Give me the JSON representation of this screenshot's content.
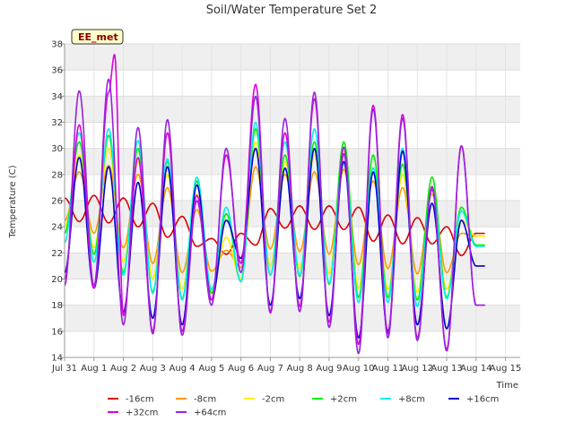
{
  "chart_data": {
    "type": "line",
    "title": "Soil/Water Temperature Set 2",
    "xlabel": "Time",
    "ylabel": "Temperature (C)",
    "badge": "EE_met",
    "ylim": [
      14,
      38
    ],
    "yticks": [
      14,
      16,
      18,
      20,
      22,
      24,
      26,
      28,
      30,
      32,
      34,
      36,
      38
    ],
    "xlim": [
      0,
      15.5
    ],
    "xticks": [
      {
        "pos": 0,
        "label": "Jul 31"
      },
      {
        "pos": 1,
        "label": "Aug 1"
      },
      {
        "pos": 2,
        "label": "Aug 2"
      },
      {
        "pos": 3,
        "label": "Aug 3"
      },
      {
        "pos": 4,
        "label": "Aug 4"
      },
      {
        "pos": 5,
        "label": "Aug 5"
      },
      {
        "pos": 6,
        "label": "Aug 6"
      },
      {
        "pos": 7,
        "label": "Aug 7"
      },
      {
        "pos": 8,
        "label": "Aug 8"
      },
      {
        "pos": 9,
        "label": "Aug 9"
      },
      {
        "pos": 10,
        "label": "Aug 10"
      },
      {
        "pos": 11,
        "label": "Aug 11"
      },
      {
        "pos": 12,
        "label": "Aug 12"
      },
      {
        "pos": 13,
        "label": "Aug 13"
      },
      {
        "pos": 14,
        "label": "Aug 14"
      },
      {
        "pos": 15,
        "label": "Aug 15"
      }
    ],
    "grid": true,
    "legend_position": "bottom",
    "series": [
      {
        "name": "-16cm",
        "color": "#dd0000",
        "x": [
          0.0,
          0.5,
          1.0,
          1.5,
          2.0,
          2.5,
          3.0,
          3.5,
          4.0,
          4.5,
          5.0,
          5.5,
          6.0,
          6.5,
          7.0,
          7.5,
          8.0,
          8.5,
          9.0,
          9.5,
          10.0,
          10.5,
          11.0,
          11.5,
          12.0,
          12.5,
          13.0,
          13.5,
          14.0,
          14.3
        ],
        "y": [
          26.2,
          24.4,
          26.4,
          24.3,
          26.2,
          24.0,
          25.8,
          23.2,
          24.8,
          22.5,
          23.1,
          21.9,
          23.5,
          22.6,
          25.4,
          23.9,
          25.6,
          23.8,
          25.6,
          23.8,
          25.5,
          22.9,
          24.9,
          22.7,
          24.7,
          22.7,
          24.0,
          21.8,
          23.5,
          23.5
        ]
      },
      {
        "name": "-8cm",
        "color": "#ff9900",
        "x": [
          0.0,
          0.5,
          1.0,
          1.5,
          2.0,
          2.5,
          3.0,
          3.5,
          4.0,
          4.5,
          5.0,
          5.5,
          6.0,
          6.5,
          7.0,
          7.5,
          8.0,
          8.5,
          9.0,
          9.5,
          10.0,
          10.5,
          11.0,
          11.5,
          12.0,
          12.5,
          13.0,
          13.5,
          14.0,
          14.3
        ],
        "y": [
          24.5,
          28.2,
          23.5,
          28.7,
          22.4,
          28.0,
          21.2,
          27.0,
          20.5,
          25.3,
          20.6,
          22.2,
          20.9,
          28.6,
          22.3,
          28.0,
          22.1,
          28.2,
          21.9,
          28.4,
          21.1,
          27.5,
          20.8,
          27.0,
          20.4,
          26.5,
          20.5,
          23.5,
          23.3,
          23.3
        ]
      },
      {
        "name": "-2cm",
        "color": "#ffee00",
        "x": [
          0.0,
          0.5,
          1.0,
          1.5,
          2.0,
          2.5,
          3.0,
          3.5,
          4.0,
          4.5,
          5.0,
          5.5,
          6.0,
          6.5,
          7.0,
          7.5,
          8.0,
          8.5,
          9.0,
          9.5,
          10.0,
          10.5,
          11.0,
          11.5,
          12.0,
          12.5,
          13.0,
          13.5,
          14.0,
          14.3
        ],
        "y": [
          24.0,
          29.5,
          22.4,
          30.0,
          21.3,
          29.0,
          20.0,
          28.0,
          19.2,
          26.5,
          19.3,
          23.2,
          20.0,
          30.5,
          21.0,
          29.0,
          20.8,
          29.5,
          20.4,
          29.8,
          19.3,
          28.5,
          19.2,
          28.0,
          19.0,
          27.0,
          19.2,
          24.5,
          23.3,
          23.3
        ]
      },
      {
        "name": "+2cm",
        "color": "#00ee00",
        "x": [
          0.0,
          0.5,
          1.0,
          1.5,
          2.0,
          2.5,
          3.0,
          3.5,
          4.0,
          4.5,
          5.0,
          5.5,
          6.0,
          6.5,
          7.0,
          7.5,
          8.0,
          8.5,
          9.0,
          9.5,
          10.0,
          10.5,
          11.0,
          11.5,
          12.0,
          12.5,
          13.0,
          13.5,
          14.0,
          14.3
        ],
        "y": [
          23.5,
          30.5,
          21.9,
          31.0,
          20.5,
          30.0,
          19.0,
          29.0,
          18.5,
          27.5,
          18.9,
          25.0,
          19.8,
          31.5,
          20.3,
          29.5,
          20.2,
          30.5,
          19.6,
          30.5,
          18.6,
          29.5,
          18.6,
          28.8,
          18.4,
          27.8,
          18.6,
          25.5,
          22.6,
          22.6
        ]
      },
      {
        "name": "+8cm",
        "color": "#00eeee",
        "x": [
          0.0,
          0.5,
          1.0,
          1.5,
          2.0,
          2.5,
          3.0,
          3.5,
          4.0,
          4.5,
          5.0,
          5.5,
          6.0,
          6.5,
          7.0,
          7.5,
          8.0,
          8.5,
          9.0,
          9.5,
          10.0,
          10.5,
          11.0,
          11.5,
          12.0,
          12.5,
          13.0,
          13.5,
          14.0,
          14.3
        ],
        "y": [
          22.8,
          31.2,
          21.3,
          31.5,
          20.3,
          30.6,
          18.9,
          29.2,
          18.4,
          27.8,
          19.2,
          25.5,
          19.8,
          32.0,
          20.3,
          30.5,
          20.3,
          31.5,
          19.7,
          29.5,
          18.2,
          28.5,
          18.2,
          30.0,
          17.9,
          26.8,
          18.5,
          25.2,
          22.5,
          22.5
        ]
      },
      {
        "name": "+16cm",
        "color": "#0000cc",
        "x": [
          0.0,
          0.5,
          1.0,
          1.5,
          2.0,
          2.5,
          3.0,
          3.5,
          4.0,
          4.5,
          5.0,
          5.5,
          6.0,
          6.5,
          7.0,
          7.5,
          8.0,
          8.5,
          9.0,
          9.5,
          10.0,
          10.5,
          11.0,
          11.5,
          12.0,
          12.5,
          13.0,
          13.5,
          14.0,
          14.3
        ],
        "y": [
          20.5,
          29.3,
          19.3,
          28.6,
          17.5,
          27.4,
          17.0,
          28.6,
          16.5,
          27.2,
          18.4,
          24.5,
          21.6,
          30.0,
          18.0,
          28.5,
          18.5,
          30.0,
          17.2,
          29.0,
          15.5,
          28.2,
          16.0,
          29.8,
          16.5,
          25.8,
          16.2,
          24.5,
          21.0,
          21.0
        ]
      },
      {
        "name": "+32cm",
        "color": "#dd00dd",
        "x": [
          0.0,
          0.5,
          1.0,
          1.5,
          1.7,
          2.0,
          2.5,
          3.0,
          3.5,
          4.0,
          4.5,
          5.0,
          5.5,
          6.0,
          6.5,
          7.0,
          7.5,
          8.0,
          8.5,
          9.0,
          9.5,
          10.0,
          10.5,
          11.0,
          11.5,
          12.0,
          12.5,
          13.0,
          13.5,
          14.0,
          14.3
        ],
        "y": [
          20.0,
          31.8,
          19.3,
          34.3,
          37.2,
          17.2,
          29.3,
          16.0,
          31.2,
          16.0,
          26.4,
          18.4,
          29.5,
          21.2,
          34.9,
          17.4,
          31.2,
          17.9,
          33.8,
          16.7,
          29.6,
          15.0,
          33.3,
          15.8,
          32.6,
          15.5,
          26.9,
          14.6,
          30.2,
          18.0,
          18.0
        ]
      },
      {
        "name": "+64cm",
        "color": "#9922dd",
        "x": [
          0.0,
          0.5,
          1.0,
          1.5,
          2.0,
          2.5,
          3.0,
          3.5,
          4.0,
          4.5,
          5.0,
          5.5,
          6.0,
          6.5,
          7.0,
          7.5,
          8.0,
          8.5,
          9.0,
          9.5,
          10.0,
          10.5,
          11.0,
          11.5,
          12.0,
          12.5,
          13.0,
          13.5,
          14.0,
          14.3
        ],
        "y": [
          19.5,
          34.4,
          19.5,
          35.3,
          16.5,
          31.6,
          15.8,
          32.2,
          15.7,
          26.0,
          18.0,
          30.0,
          20.5,
          34.0,
          17.5,
          32.3,
          17.5,
          34.3,
          16.3,
          30.1,
          14.3,
          33.0,
          15.5,
          32.3,
          15.3,
          27.1,
          14.5,
          30.2,
          18.0,
          18.0
        ]
      }
    ]
  }
}
